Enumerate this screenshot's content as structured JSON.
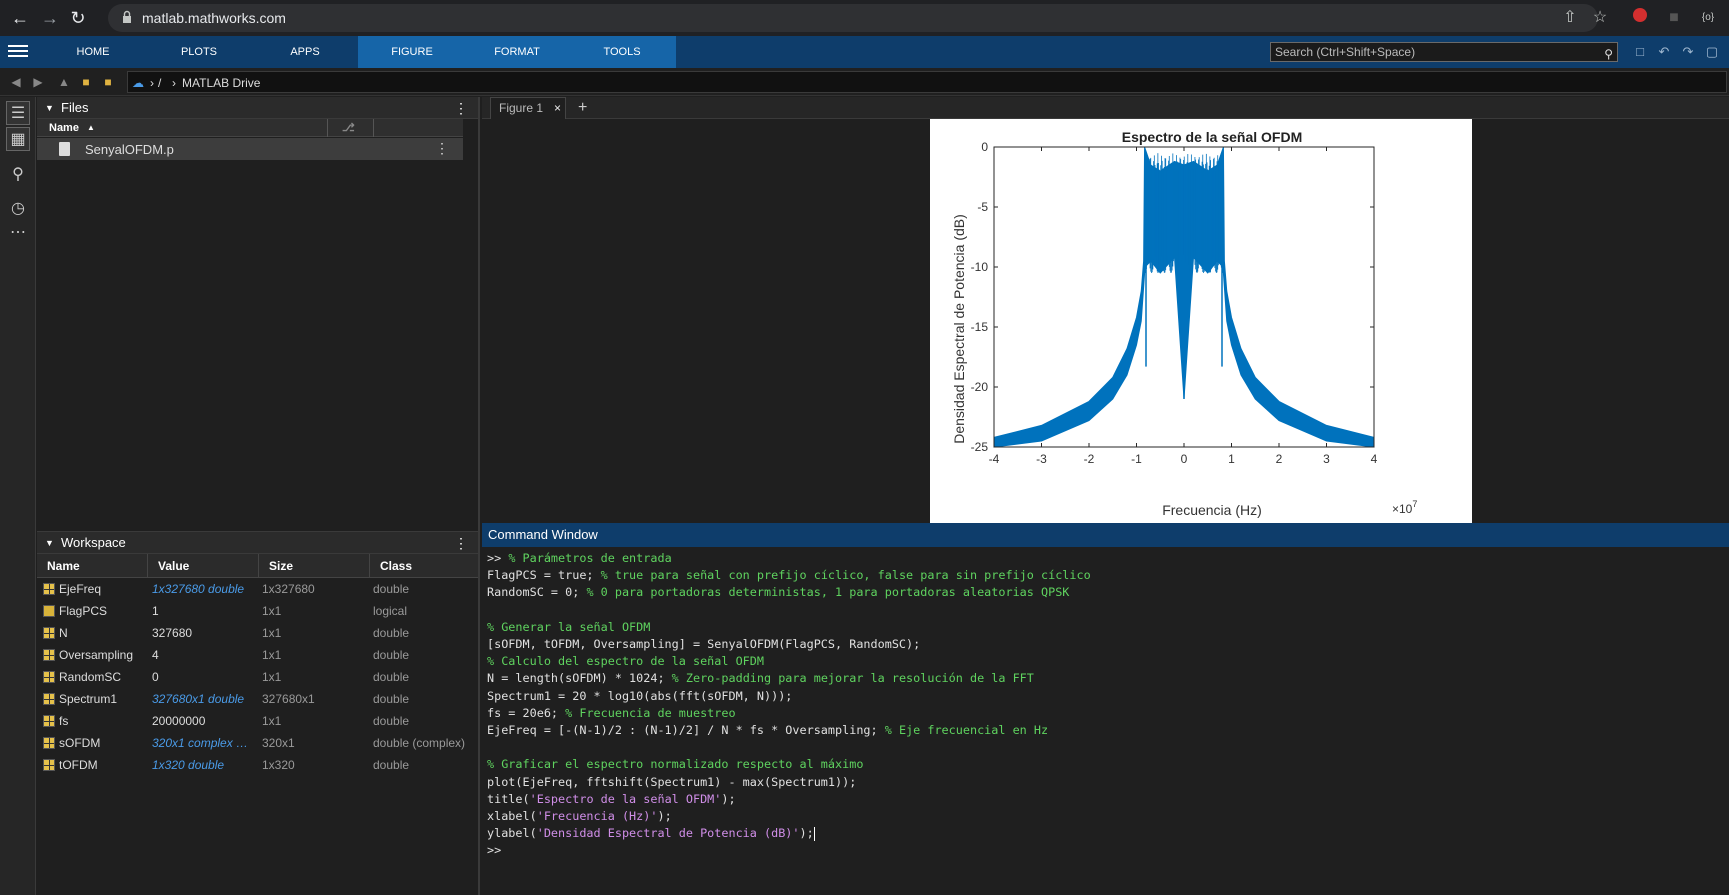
{
  "browser": {
    "url": "matlab.mathworks.com"
  },
  "ribbon": {
    "tabs": [
      "HOME",
      "PLOTS",
      "APPS",
      "FIGURE",
      "FORMAT",
      "TOOLS"
    ],
    "search_placeholder": "Search (Ctrl+Shift+Space)"
  },
  "path": {
    "root": "/",
    "drive": "MATLAB Drive"
  },
  "files": {
    "title": "Files",
    "name_col": "Name",
    "items": [
      "SenyalOFDM.p"
    ]
  },
  "workspace": {
    "title": "Workspace",
    "columns": [
      "Name",
      "Value",
      "Size",
      "Class"
    ],
    "rows": [
      {
        "name": "EjeFreq",
        "value": "1x327680 double",
        "size": "1x327680",
        "class": "double",
        "link": true
      },
      {
        "name": "FlagPCS",
        "value": "1",
        "size": "1x1",
        "class": "logical",
        "link": false
      },
      {
        "name": "N",
        "value": "327680",
        "size": "1x1",
        "class": "double",
        "link": false
      },
      {
        "name": "Oversampling",
        "value": "4",
        "size": "1x1",
        "class": "double",
        "link": false
      },
      {
        "name": "RandomSC",
        "value": "0",
        "size": "1x1",
        "class": "double",
        "link": false
      },
      {
        "name": "Spectrum1",
        "value": "327680x1 double",
        "size": "327680x1",
        "class": "double",
        "link": true
      },
      {
        "name": "fs",
        "value": "20000000",
        "size": "1x1",
        "class": "double",
        "link": false
      },
      {
        "name": "sOFDM",
        "value": "320x1 complex d...",
        "size": "320x1",
        "class": "double (complex)",
        "link": true
      },
      {
        "name": "tOFDM",
        "value": "1x320 double",
        "size": "1x320",
        "class": "double",
        "link": true
      }
    ]
  },
  "figure": {
    "tab_label": "Figure 1"
  },
  "chart_data": {
    "type": "line",
    "title": "Espectro de la señal OFDM",
    "xlabel": "Frecuencia (Hz)",
    "ylabel": "Densidad Espectral de Potencia (dB)",
    "x_exponent_label": "×10",
    "x_exponent": "7",
    "xlim": [
      -4,
      4
    ],
    "ylim": [
      -25,
      0
    ],
    "xticks": [
      "-4",
      "-3",
      "-2",
      "-1",
      "0",
      "1",
      "2",
      "3",
      "4"
    ],
    "yticks": [
      "0",
      "-5",
      "-10",
      "-15",
      "-20",
      "-25"
    ],
    "series": [
      {
        "color": "#0072bd",
        "envelope_upper": [
          [
            -4,
            -24.2
          ],
          [
            -3,
            -23.2
          ],
          [
            -2,
            -21.2
          ],
          [
            -1.5,
            -19.2
          ],
          [
            -1.2,
            -16.8
          ],
          [
            -1.0,
            -14.2
          ],
          [
            -0.9,
            -12.0
          ],
          [
            -0.85,
            -9.5
          ],
          [
            -0.83,
            0
          ],
          [
            -0.7,
            -1.5
          ],
          [
            -0.5,
            -2.0
          ],
          [
            -0.2,
            -1.2
          ],
          [
            0,
            -1.5
          ],
          [
            0.2,
            -1.2
          ],
          [
            0.5,
            -2.0
          ],
          [
            0.7,
            -1.5
          ],
          [
            0.83,
            0
          ],
          [
            0.85,
            -9.5
          ],
          [
            0.9,
            -12.0
          ],
          [
            1.0,
            -14.2
          ],
          [
            1.2,
            -16.8
          ],
          [
            1.5,
            -19.2
          ],
          [
            2,
            -21.2
          ],
          [
            3,
            -23.2
          ],
          [
            4,
            -24.2
          ]
        ],
        "envelope_lower": [
          [
            -4,
            -25
          ],
          [
            -3,
            -24.5
          ],
          [
            -2,
            -22.8
          ],
          [
            -1.5,
            -21
          ],
          [
            -1.2,
            -19
          ],
          [
            -1.0,
            -16.5
          ],
          [
            -0.9,
            -14.5
          ],
          [
            -0.82,
            -10
          ],
          [
            -0.7,
            -9.5
          ],
          [
            -0.5,
            -10.5
          ],
          [
            -0.2,
            -9.2
          ],
          [
            0,
            -21
          ],
          [
            0.2,
            -9.2
          ],
          [
            0.5,
            -10.5
          ],
          [
            0.7,
            -9.5
          ],
          [
            0.82,
            -10
          ],
          [
            0.9,
            -14.5
          ],
          [
            1.0,
            -16.5
          ],
          [
            1.2,
            -19
          ],
          [
            1.5,
            -21
          ],
          [
            2,
            -22.8
          ],
          [
            3,
            -24.5
          ],
          [
            4,
            -25
          ]
        ],
        "spikes": [
          [
            -0.8,
            -18.3
          ],
          [
            0.8,
            -18.3
          ],
          [
            0,
            -21
          ]
        ]
      }
    ]
  },
  "command": {
    "title": "Command Window",
    "lines": [
      [
        {
          "t": ">> ",
          "c": "prompt"
        },
        {
          "t": "% Parámetros de entrada",
          "c": "comment"
        }
      ],
      [
        {
          "t": "FlagPCS = true; ",
          "c": "code"
        },
        {
          "t": "% true para señal con prefijo cíclico, false para sin prefijo cíclico",
          "c": "comment"
        }
      ],
      [
        {
          "t": "RandomSC = 0; ",
          "c": "code"
        },
        {
          "t": "% 0 para portadoras deterministas, 1 para portadoras aleatorias QPSK",
          "c": "comment"
        }
      ],
      [],
      [
        {
          "t": "% Generar la señal OFDM",
          "c": "comment"
        }
      ],
      [
        {
          "t": "[sOFDM, tOFDM, Oversampling] = SenyalOFDM(FlagPCS, RandomSC);",
          "c": "code"
        }
      ],
      [
        {
          "t": "% Calculo del espectro de la señal OFDM",
          "c": "comment"
        }
      ],
      [
        {
          "t": "N = length(sOFDM) * 1024; ",
          "c": "code"
        },
        {
          "t": "% Zero-padding para mejorar la resolución de la FFT",
          "c": "comment"
        }
      ],
      [
        {
          "t": "Spectrum1 = 20 * log10(abs(fft(sOFDM, N)));",
          "c": "code"
        }
      ],
      [
        {
          "t": "fs = 20e6; ",
          "c": "code"
        },
        {
          "t": "% Frecuencia de muestreo",
          "c": "comment"
        }
      ],
      [
        {
          "t": "EjeFreq = [-(N-1)/2 : (N-1)/2] / N * fs * Oversampling; ",
          "c": "code"
        },
        {
          "t": "% Eje frecuencial en Hz",
          "c": "comment"
        }
      ],
      [],
      [
        {
          "t": "% Graficar el espectro normalizado respecto al máximo",
          "c": "comment"
        }
      ],
      [
        {
          "t": "plot(EjeFreq, fftshift(Spectrum1) - max(Spectrum1));",
          "c": "code"
        }
      ],
      [
        {
          "t": "title(",
          "c": "code"
        },
        {
          "t": "'Espectro de la señal OFDM'",
          "c": "str"
        },
        {
          "t": ");",
          "c": "code"
        }
      ],
      [
        {
          "t": "xlabel(",
          "c": "code"
        },
        {
          "t": "'Frecuencia (Hz)'",
          "c": "str"
        },
        {
          "t": ");",
          "c": "code"
        }
      ],
      [
        {
          "t": "ylabel(",
          "c": "code"
        },
        {
          "t": "'Densidad Espectral de Potencia (dB)'",
          "c": "str"
        },
        {
          "t": ");",
          "c": "code"
        }
      ],
      [
        {
          "t": ">> ",
          "c": "prompt"
        }
      ]
    ]
  }
}
